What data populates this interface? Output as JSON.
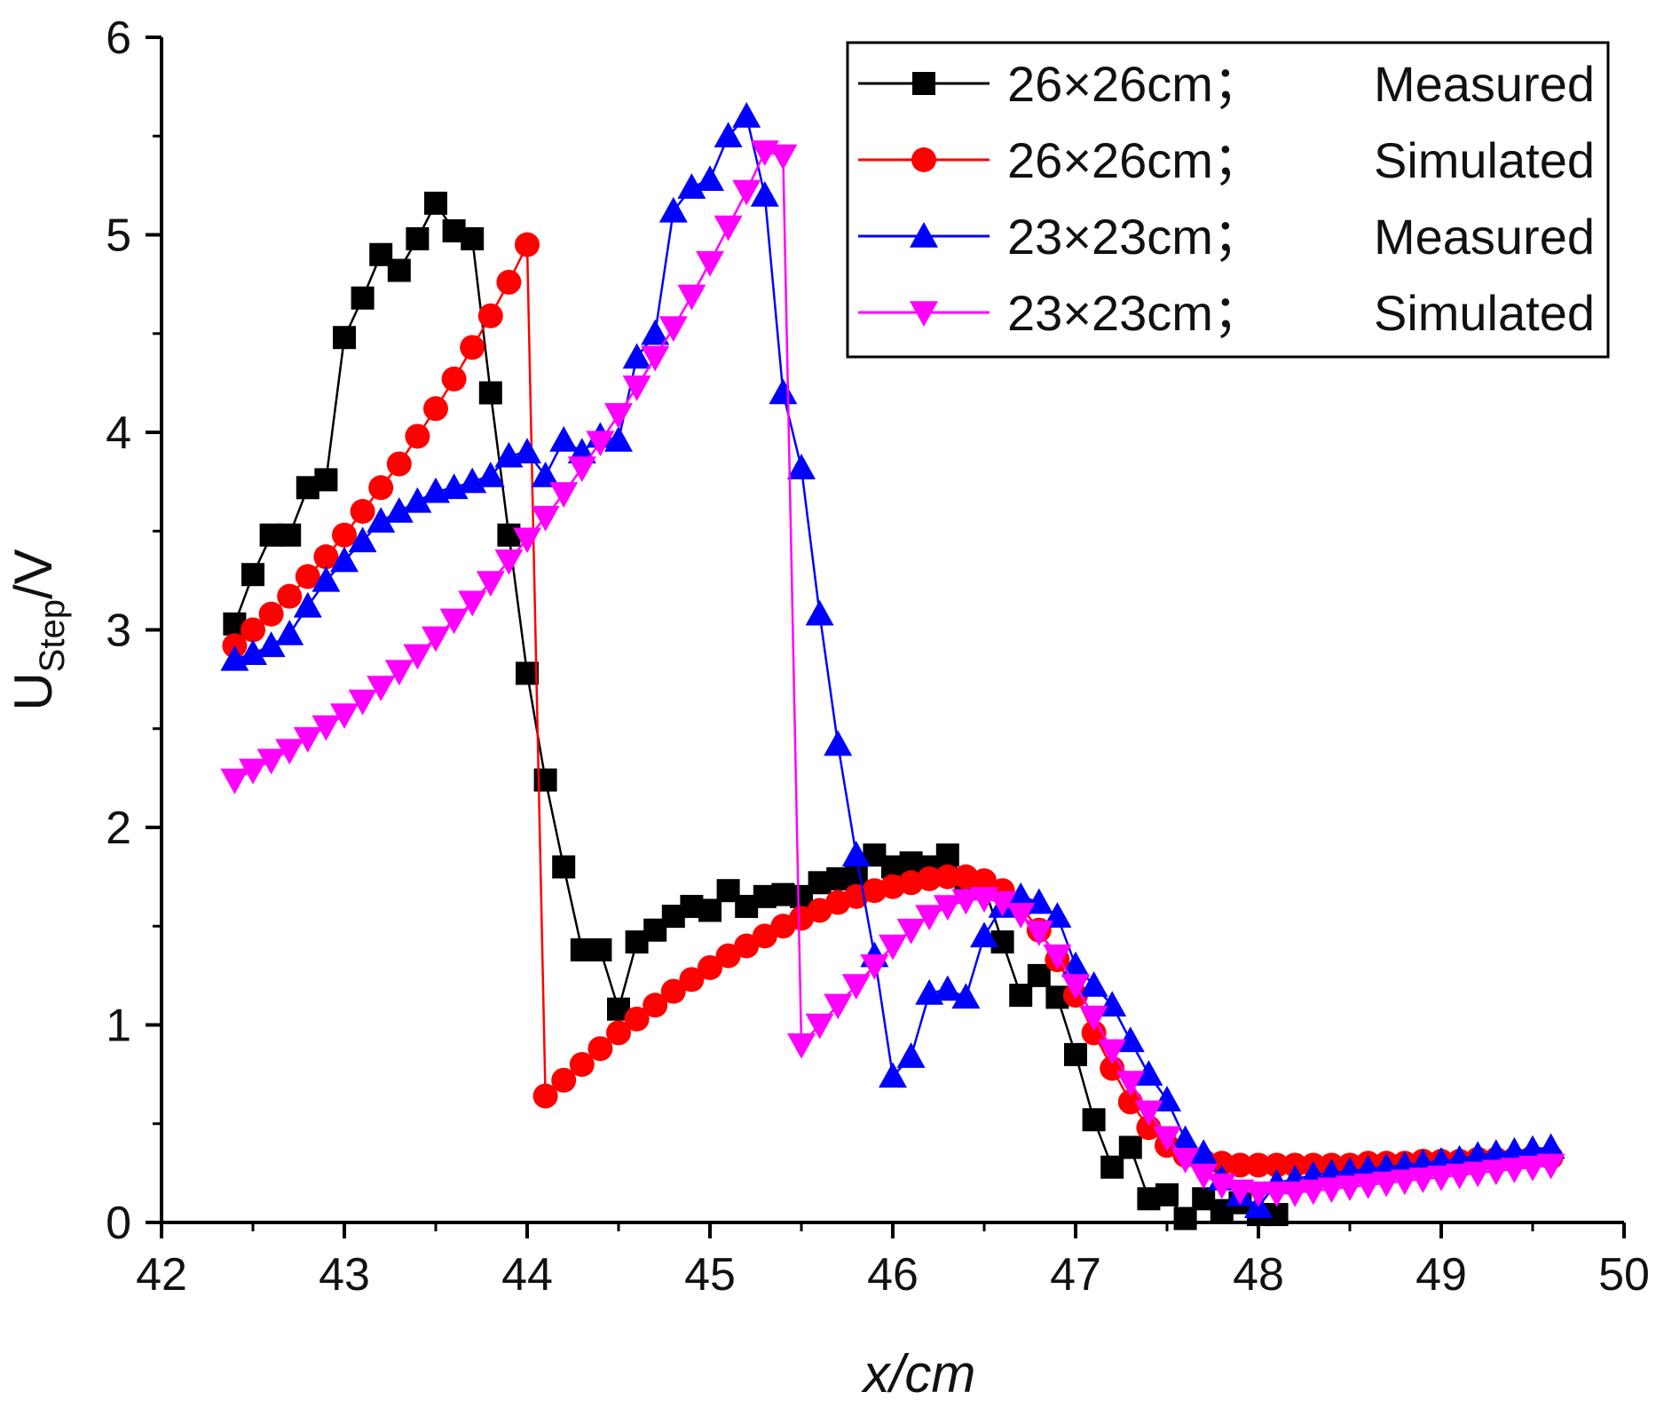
{
  "chart_data": {
    "type": "line",
    "title": "",
    "xlabel": "x/cm",
    "ylabel": "U",
    "ylabel_subscript": "Step",
    "ylabel_suffix": "/V",
    "xlim": [
      42,
      50
    ],
    "ylim": [
      0,
      6
    ],
    "xticks": [
      "42",
      "43",
      "44",
      "45",
      "46",
      "47",
      "48",
      "49",
      "50"
    ],
    "yticks": [
      "0",
      "1",
      "2",
      "3",
      "4",
      "5",
      "6"
    ],
    "legend_position": "top-right",
    "series": [
      {
        "name": "26×26cm；Measured",
        "label_size": "26×26cm；",
        "label_type": "Measured",
        "color": "#000000",
        "marker": "square",
        "x": [
          42.4,
          42.5,
          42.6,
          42.7,
          42.8,
          42.9,
          43.0,
          43.1,
          43.2,
          43.3,
          43.4,
          43.5,
          43.6,
          43.7,
          43.8,
          43.9,
          44.0,
          44.1,
          44.2,
          44.3,
          44.4,
          44.5,
          44.6,
          44.7,
          44.8,
          44.9,
          45.0,
          45.1,
          45.2,
          45.3,
          45.4,
          45.5,
          45.6,
          45.7,
          45.8,
          45.9,
          46.0,
          46.1,
          46.2,
          46.3,
          46.4,
          46.5,
          46.6,
          46.7,
          46.8,
          46.9,
          47.0,
          47.1,
          47.2,
          47.3,
          47.4,
          47.5,
          47.6,
          47.7,
          47.8,
          47.9,
          48.0,
          48.1
        ],
        "y": [
          3.03,
          3.28,
          3.48,
          3.48,
          3.72,
          3.76,
          4.48,
          4.68,
          4.9,
          4.82,
          4.98,
          5.16,
          5.02,
          4.98,
          4.2,
          3.48,
          2.78,
          2.24,
          1.8,
          1.38,
          1.38,
          1.08,
          1.42,
          1.48,
          1.55,
          1.6,
          1.58,
          1.68,
          1.6,
          1.65,
          1.66,
          1.65,
          1.72,
          1.74,
          1.76,
          1.86,
          1.8,
          1.82,
          1.8,
          1.86,
          1.72,
          1.7,
          1.42,
          1.15,
          1.25,
          1.14,
          0.85,
          0.52,
          0.28,
          0.38,
          0.12,
          0.14,
          0.02,
          0.12,
          0.06,
          0.1,
          0.04,
          0.04
        ]
      },
      {
        "name": "26×26cm；Simulated",
        "label_size": "26×26cm；",
        "label_type": "Simulated",
        "color": "#ff0000",
        "marker": "circle",
        "x": [
          42.4,
          42.5,
          42.6,
          42.7,
          42.8,
          42.9,
          43.0,
          43.1,
          43.2,
          43.3,
          43.4,
          43.5,
          43.6,
          43.7,
          43.8,
          43.9,
          44.0,
          44.1,
          44.2,
          44.3,
          44.4,
          44.5,
          44.6,
          44.7,
          44.8,
          44.9,
          45.0,
          45.1,
          45.2,
          45.3,
          45.4,
          45.5,
          45.6,
          45.7,
          45.8,
          45.9,
          46.0,
          46.1,
          46.2,
          46.3,
          46.4,
          46.5,
          46.6,
          46.7,
          46.8,
          46.9,
          47.0,
          47.1,
          47.2,
          47.3,
          47.4,
          47.5,
          47.6,
          47.7,
          47.8,
          47.9,
          48.0,
          48.1,
          48.2,
          48.3,
          48.4,
          48.5,
          48.6,
          48.7,
          48.8,
          48.9,
          49.0,
          49.1,
          49.2,
          49.3,
          49.4,
          49.5,
          49.6
        ],
        "y": [
          2.92,
          3.0,
          3.08,
          3.17,
          3.27,
          3.37,
          3.48,
          3.6,
          3.72,
          3.84,
          3.98,
          4.12,
          4.27,
          4.43,
          4.59,
          4.76,
          4.95,
          0.64,
          0.72,
          0.8,
          0.88,
          0.96,
          1.03,
          1.1,
          1.17,
          1.23,
          1.29,
          1.35,
          1.4,
          1.45,
          1.5,
          1.54,
          1.58,
          1.62,
          1.65,
          1.68,
          1.7,
          1.72,
          1.74,
          1.75,
          1.75,
          1.73,
          1.68,
          1.6,
          1.48,
          1.33,
          1.15,
          0.96,
          0.78,
          0.61,
          0.48,
          0.39,
          0.34,
          0.31,
          0.3,
          0.29,
          0.29,
          0.29,
          0.29,
          0.29,
          0.29,
          0.29,
          0.3,
          0.3,
          0.3,
          0.31,
          0.31,
          0.31,
          0.32,
          0.32,
          0.32,
          0.33,
          0.33
        ]
      },
      {
        "name": "23×23cm；Measured",
        "label_size": "23×23cm；",
        "label_type": "Measured",
        "color": "#0000ff",
        "marker": "triangle-up",
        "x": [
          42.4,
          42.5,
          42.6,
          42.7,
          42.8,
          42.9,
          43.0,
          43.1,
          43.2,
          43.3,
          43.4,
          43.5,
          43.6,
          43.7,
          43.8,
          43.9,
          44.0,
          44.1,
          44.2,
          44.3,
          44.4,
          44.5,
          44.6,
          44.7,
          44.8,
          44.9,
          45.0,
          45.1,
          45.2,
          45.3,
          45.4,
          45.5,
          45.6,
          45.7,
          45.8,
          45.9,
          46.0,
          46.1,
          46.2,
          46.3,
          46.4,
          46.5,
          46.6,
          46.7,
          46.8,
          46.9,
          47.0,
          47.1,
          47.2,
          47.3,
          47.4,
          47.5,
          47.6,
          47.7,
          47.8,
          47.9,
          48.0,
          48.1,
          48.2,
          48.3,
          48.4,
          48.5,
          48.6,
          48.7,
          48.8,
          48.9,
          49.0,
          49.1,
          49.2,
          49.3,
          49.4,
          49.5,
          49.6
        ],
        "y": [
          2.85,
          2.88,
          2.92,
          2.98,
          3.12,
          3.25,
          3.35,
          3.45,
          3.55,
          3.6,
          3.65,
          3.7,
          3.72,
          3.75,
          3.78,
          3.88,
          3.9,
          3.78,
          3.96,
          3.9,
          3.98,
          3.96,
          4.38,
          4.5,
          5.12,
          5.24,
          5.28,
          5.5,
          5.6,
          5.2,
          4.2,
          3.82,
          3.08,
          2.42,
          1.86,
          1.35,
          0.74,
          0.84,
          1.16,
          1.18,
          1.14,
          1.45,
          1.6,
          1.65,
          1.62,
          1.55,
          1.3,
          1.2,
          1.1,
          0.92,
          0.75,
          0.62,
          0.42,
          0.35,
          0.22,
          0.14,
          0.08,
          0.2,
          0.22,
          0.24,
          0.25,
          0.26,
          0.27,
          0.28,
          0.29,
          0.3,
          0.31,
          0.32,
          0.34,
          0.35,
          0.36,
          0.37,
          0.38
        ]
      },
      {
        "name": "23×23cm；Simulated",
        "label_size": "23×23cm；",
        "label_type": "Simulated",
        "color": "#ff00ff",
        "marker": "triangle-down",
        "x": [
          42.4,
          42.5,
          42.6,
          42.7,
          42.8,
          42.9,
          43.0,
          43.1,
          43.2,
          43.3,
          43.4,
          43.5,
          43.6,
          43.7,
          43.8,
          43.9,
          44.0,
          44.1,
          44.2,
          44.3,
          44.4,
          44.5,
          44.6,
          44.7,
          44.8,
          44.9,
          45.0,
          45.1,
          45.2,
          45.3,
          45.4,
          45.5,
          45.6,
          45.7,
          45.8,
          45.9,
          46.0,
          46.1,
          46.2,
          46.3,
          46.4,
          46.5,
          46.6,
          46.7,
          46.8,
          46.9,
          47.0,
          47.1,
          47.2,
          47.3,
          47.4,
          47.5,
          47.6,
          47.7,
          47.8,
          47.9,
          48.0,
          48.1,
          48.2,
          48.3,
          48.4,
          48.5,
          48.6,
          48.7,
          48.8,
          48.9,
          49.0,
          49.1,
          49.2,
          49.3,
          49.4,
          49.5,
          49.6
        ],
        "y": [
          2.24,
          2.29,
          2.34,
          2.39,
          2.45,
          2.51,
          2.57,
          2.64,
          2.71,
          2.79,
          2.87,
          2.96,
          3.05,
          3.14,
          3.24,
          3.35,
          3.46,
          3.57,
          3.69,
          3.82,
          3.95,
          4.09,
          4.23,
          4.38,
          4.53,
          4.69,
          4.86,
          5.04,
          5.22,
          5.42,
          5.4,
          0.9,
          1.0,
          1.1,
          1.2,
          1.3,
          1.4,
          1.48,
          1.55,
          1.6,
          1.63,
          1.64,
          1.62,
          1.56,
          1.47,
          1.35,
          1.2,
          1.04,
          0.87,
          0.71,
          0.56,
          0.43,
          0.32,
          0.24,
          0.19,
          0.16,
          0.15,
          0.15,
          0.15,
          0.16,
          0.17,
          0.18,
          0.19,
          0.2,
          0.21,
          0.22,
          0.23,
          0.24,
          0.25,
          0.26,
          0.27,
          0.28,
          0.29
        ]
      }
    ]
  }
}
